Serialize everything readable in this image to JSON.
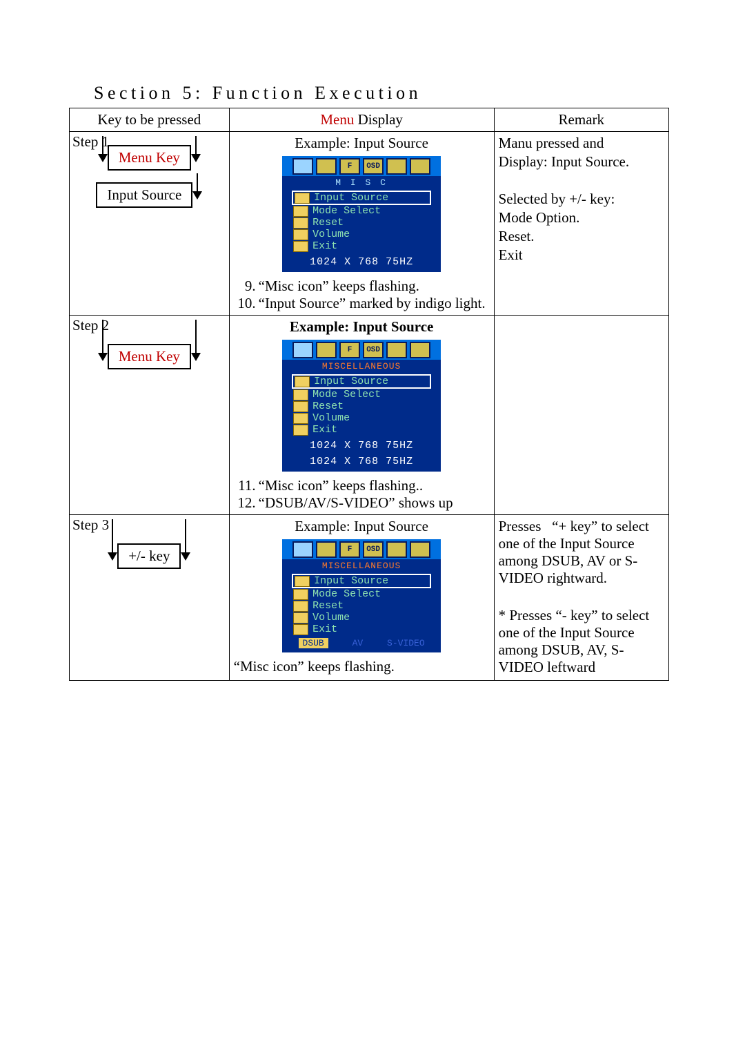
{
  "section_title": "Section 5: Function Execution",
  "headers": {
    "col1": "Key to be pressed",
    "col2_pre": "Menu",
    "col2_post": " Display",
    "col3": "Remark"
  },
  "osd_common": {
    "menu_items": [
      "Input Source",
      "Mode Select",
      "Reset",
      "Volume",
      "Exit"
    ],
    "resolution": "1024 X 768 75HZ",
    "iconbar": [
      "",
      "",
      "F",
      "OSD",
      "",
      ""
    ]
  },
  "rows": [
    {
      "step": "Step 1",
      "keys": [
        {
          "label": "Menu Key",
          "style": "red"
        },
        {
          "label": "Input Source",
          "style": "black"
        }
      ],
      "caption": "Example: Input Source",
      "caption_bold": false,
      "subtitle_text": "M I S C",
      "subtitle_style": "cyan",
      "bottom_sources": null,
      "notes": [
        {
          "n": "9.",
          "t": "“Misc icon” keeps flashing."
        },
        {
          "n": "10.",
          "t": "“Input Source” marked by indigo light."
        }
      ],
      "remark": [
        "Manu pressed and",
        "Display: Input Source.",
        "",
        "Selected by +/- key:",
        "Mode Option.",
        "Reset.",
        "Exit"
      ]
    },
    {
      "step": "Step 2",
      "keys": [
        {
          "label": "Menu Key",
          "style": "red"
        }
      ],
      "caption": "Example: Input Source",
      "caption_bold": true,
      "subtitle_text": "MISCELLANEOUS",
      "subtitle_style": "orange",
      "bottom_sources": null,
      "notes": [
        {
          "n": "11.",
          "t": "“Misc icon” keeps flashing.."
        },
        {
          "n": "12.",
          "t": "“DSUB/AV/S-VIDEO” shows up"
        }
      ],
      "remark": []
    },
    {
      "step": "Step 3",
      "keys": [
        {
          "label": "+/- key",
          "style": "black"
        }
      ],
      "caption": "Example: Input Source",
      "caption_bold": false,
      "subtitle_text": "MISCELLANEOUS",
      "subtitle_style": "orange",
      "bottom_sources": [
        "DSUB",
        "AV",
        "S-VIDEO"
      ],
      "notes_plain": "“Misc icon” keeps flashing.",
      "remark": [
        "Presses   “+ key” to select one of the Input Source among DSUB, AV or S-VIDEO rightward.",
        "",
        "* Presses “- key” to select one of the Input Source among DSUB, AV, S-VIDEO leftward"
      ]
    }
  ]
}
